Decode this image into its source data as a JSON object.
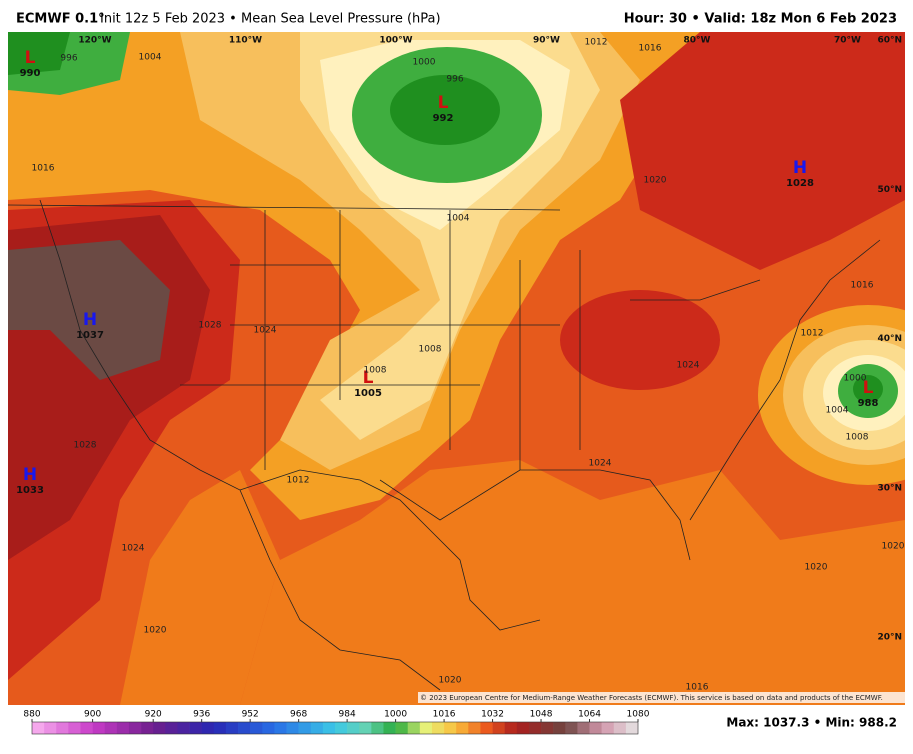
{
  "header": {
    "model": "ECMWF 0.1°",
    "description": "Init 12z 5 Feb 2023 • Mean Sea Level Pressure (hPa)",
    "valid": "Hour: 30 • Valid: 18z Mon 6 Feb 2023"
  },
  "map": {
    "centers": [
      {
        "symbol": "L",
        "value": 990
      },
      {
        "symbol": "L",
        "value": 992
      },
      {
        "symbol": "H",
        "value": 1028
      },
      {
        "symbol": "H",
        "value": 1037
      },
      {
        "symbol": "L",
        "value": 1005
      },
      {
        "symbol": "L",
        "value": 988
      },
      {
        "symbol": "H",
        "value": 1033
      }
    ],
    "contour_labels": [
      1004,
      996,
      1000,
      996,
      1016,
      1020,
      1012,
      1016,
      1004,
      1028,
      1024,
      1008,
      1008,
      1024,
      1012,
      1016,
      1000,
      1004,
      1008,
      1028,
      1024,
      1012,
      1024,
      1020,
      1020,
      1020,
      1016,
      1020
    ],
    "latitude_labels": [
      "60°N",
      "50°N",
      "40°N",
      "30°N",
      "20°N"
    ],
    "longitude_labels": [
      "120°W",
      "110°W",
      "100°W",
      "90°W",
      "80°W",
      "70°W"
    ]
  },
  "copyright": "© 2023 European Centre for Medium-Range Weather Forecasts (ECMWF). This service is based on data and products of the ECMWF.",
  "colorbar": {
    "ticks": [
      880,
      900,
      920,
      936,
      952,
      968,
      984,
      1000,
      1016,
      1032,
      1048,
      1064,
      1080
    ]
  },
  "footer": "Max: 1037.3 • Min: 988.2"
}
